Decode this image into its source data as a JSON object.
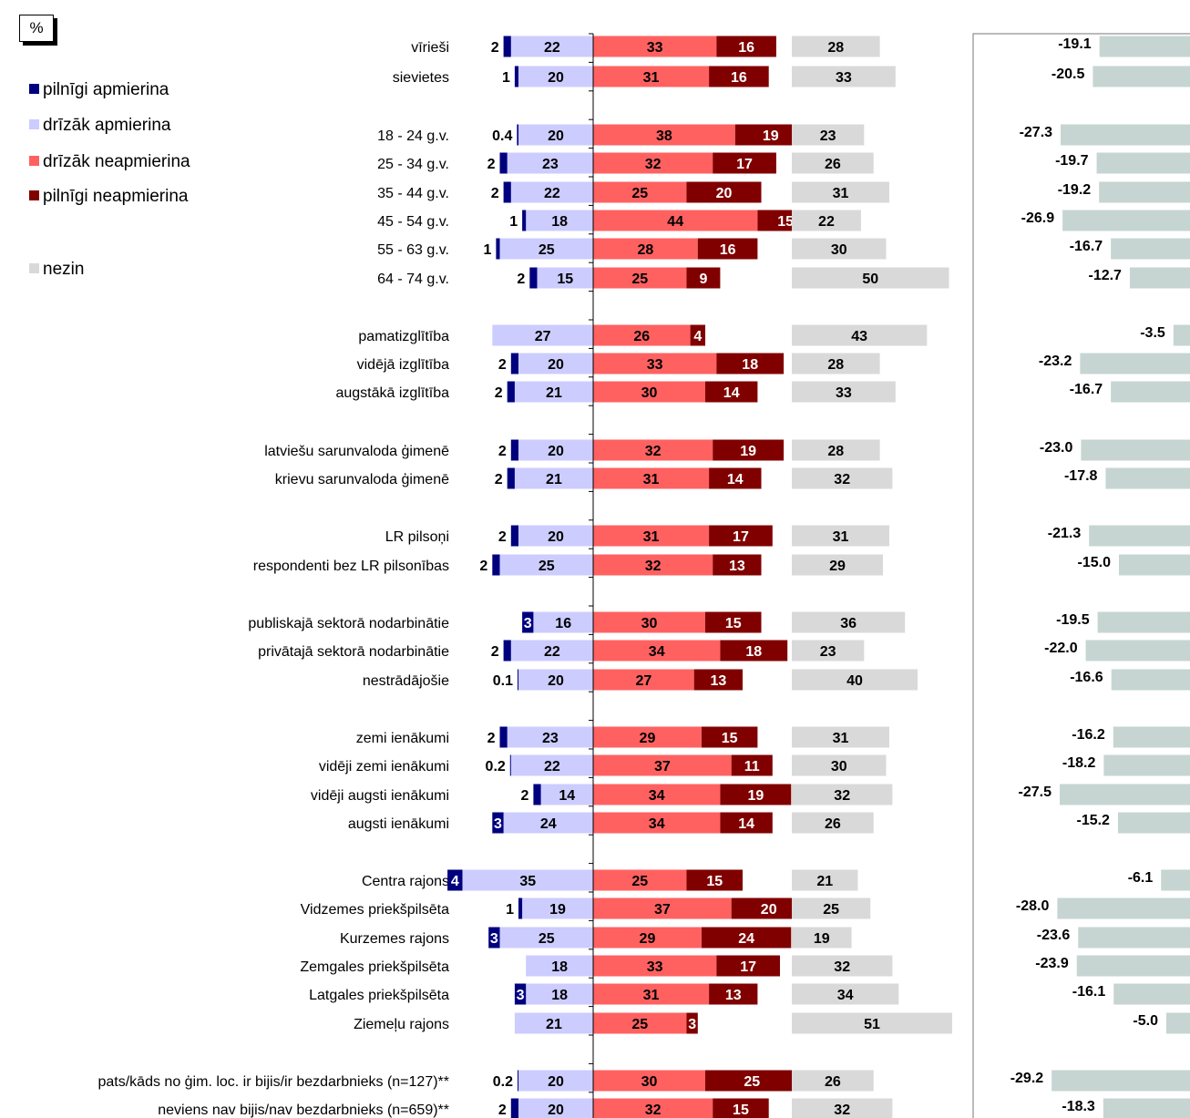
{
  "unit_label": "%",
  "legend": [
    {
      "label": "pilnīgi apmierina",
      "color": "#00007f"
    },
    {
      "label": "drīzāk apmierina",
      "color": "#ccccff"
    },
    {
      "label": "drīzāk neapmierina",
      "color": "#ff6161"
    },
    {
      "label": "pilnīgi neapmierina",
      "color": "#800000"
    },
    {
      "label": "nezin",
      "color": "#d9d9d9"
    }
  ],
  "chart_data": {
    "type": "bar",
    "stacked": "diverging",
    "series": [
      {
        "name": "pilnīgi apmierina",
        "color": "#00007f",
        "side": "left",
        "values": [
          2,
          1,
          0.4,
          2,
          2,
          1,
          1,
          2,
          null,
          2,
          2,
          2,
          2,
          2,
          2,
          3,
          2,
          0.1,
          2,
          0.2,
          2,
          3,
          4,
          1,
          3,
          null,
          3,
          null,
          0.2,
          2
        ]
      },
      {
        "name": "drīzāk apmierina",
        "color": "#ccccff",
        "side": "left",
        "values": [
          22,
          20,
          20,
          23,
          22,
          18,
          25,
          15,
          27,
          20,
          21,
          20,
          21,
          20,
          25,
          16,
          22,
          20,
          23,
          22,
          14,
          24,
          35,
          19,
          25,
          18,
          18,
          21,
          20,
          20
        ]
      },
      {
        "name": "drīzāk neapmierina",
        "color": "#ff6161",
        "side": "right",
        "values": [
          33,
          31,
          38,
          32,
          25,
          44,
          28,
          25,
          26,
          33,
          30,
          32,
          31,
          31,
          32,
          30,
          34,
          27,
          29,
          37,
          34,
          34,
          25,
          37,
          29,
          33,
          31,
          25,
          30,
          32
        ]
      },
      {
        "name": "pilnīgi neapmierina",
        "color": "#800000",
        "side": "right",
        "values": [
          16,
          16,
          19,
          17,
          20,
          15,
          16,
          9,
          4,
          18,
          14,
          19,
          14,
          17,
          13,
          15,
          18,
          13,
          15,
          11,
          19,
          14,
          15,
          20,
          24,
          17,
          13,
          3,
          25,
          15
        ]
      },
      {
        "name": "nezin",
        "color": "#d9d9d9",
        "side": "separate",
        "values": [
          28,
          33,
          23,
          26,
          31,
          22,
          30,
          50,
          43,
          28,
          33,
          28,
          32,
          31,
          29,
          36,
          23,
          40,
          31,
          30,
          32,
          26,
          21,
          25,
          19,
          32,
          34,
          51,
          26,
          32
        ]
      }
    ],
    "balance": {
      "color": "#c6d5d2",
      "values": [
        -19.1,
        -20.5,
        -27.3,
        -19.7,
        -19.2,
        -26.9,
        -16.7,
        -12.7,
        -3.5,
        -23.2,
        -16.7,
        -23.0,
        -17.8,
        -21.3,
        -15.0,
        -19.5,
        -22.0,
        -16.6,
        -16.2,
        -18.2,
        -27.5,
        -15.2,
        -6.1,
        -28.0,
        -23.6,
        -23.9,
        -16.1,
        -5.0,
        -29.2,
        -18.3
      ],
      "labels": [
        "-19.1",
        "-20.5",
        "-27.3",
        "-19.7",
        "-19.2",
        "-26.9",
        "-16.7",
        "-12.7",
        "-3.5",
        "-23.2",
        "-16.7",
        "-23.0",
        "-17.8",
        "-21.3",
        "-15.0",
        "-19.5",
        "-22.0",
        "-16.6",
        "-16.2",
        "-18.2",
        "-27.5",
        "-15.2",
        "-6.1",
        "-28.0",
        "-23.6",
        "-23.9",
        "-16.1",
        "-5.0",
        "-29.2",
        "-18.3"
      ]
    },
    "categories": [
      "vīrieši",
      "sievietes",
      "18 - 24 g.v.",
      "25 - 34 g.v.",
      "35 - 44 g.v.",
      "45 - 54 g.v.",
      "55 - 63 g.v.",
      "64 - 74 g.v.",
      "pamatizglītība",
      "vidējā izglītība",
      "augstākā izglītība",
      "latviešu sarunvaloda ģimenē",
      "krievu sarunvaloda ģimenē",
      "LR pilsoņi",
      "respondenti bez LR pilsonības",
      "publiskajā sektorā nodarbinātie",
      "privātajā sektorā nodarbinātie",
      "nestrādājošie",
      "zemi ienākumi",
      "vidēji zemi ienākumi",
      "vidēji augsti ienākumi",
      "augsti ienākumi",
      "Centra rajons",
      "Vidzemes priekšpilsēta",
      "Kurzemes rajons",
      "Zemgales priekšpilsēta",
      "Latgales priekšpilsēta",
      "Ziemeļu rajons",
      "pats/kāds no ģim. loc. ir bijis/ir bezdarbnieks (n=127)**",
      "neviens nav bijis/nav bezdarbnieks (n=659)**"
    ],
    "groups": [
      [
        0,
        1
      ],
      [
        2,
        3,
        4,
        5,
        6,
        7
      ],
      [
        8,
        9,
        10
      ],
      [
        11,
        12
      ],
      [
        13,
        14
      ],
      [
        15,
        16,
        17
      ],
      [
        18,
        19,
        20,
        21
      ],
      [
        22,
        23,
        24,
        25,
        26,
        27
      ],
      [
        28,
        29
      ]
    ]
  }
}
